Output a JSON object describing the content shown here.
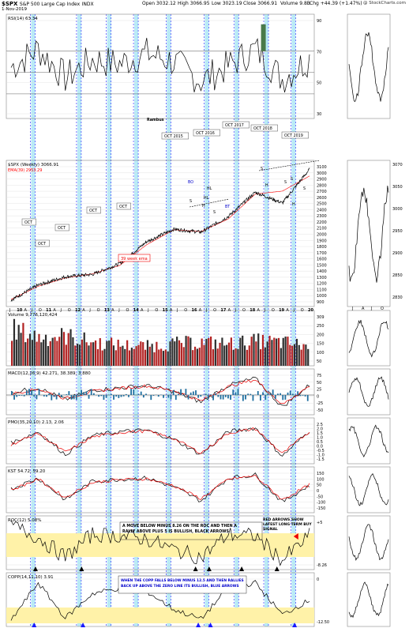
{
  "header": {
    "symbol": "$SPX",
    "name": "S&P 500 Large Cap Index",
    "exchange": "INDX",
    "date": "1-Nov-2019",
    "open": "Open 3032.12",
    "high": "High 3066.95",
    "low": "Low 3023.19",
    "close": "Close 3066.91",
    "volume": "Volume 9.8B",
    "chg": "Chg +44.39 (+1.47%)",
    "site": "@ StockCharts.com"
  },
  "colors": {
    "price": "#000000",
    "ema": "#ff0000",
    "volUp": "#b22222",
    "volDown": "#2e2e2e",
    "vline": "#1a1aff",
    "cyanband": "#7fd8ee",
    "yellow": "#fff2a8",
    "bars": "#1f6fa0"
  },
  "chart_data": [
    {
      "type": "line",
      "panel": "RSI",
      "title": "RSI(14) 63.34",
      "y_ticks": [
        "90",
        "70",
        "50",
        "30"
      ],
      "ylim": [
        10,
        100
      ],
      "x": [
        "2009",
        "2010",
        "2011",
        "2012",
        "2013",
        "2014",
        "2015",
        "2016",
        "2017",
        "2018",
        "2019",
        "2020"
      ],
      "series": [
        {
          "name": "RSI(14)",
          "values": [
            55,
            72,
            45,
            62,
            58,
            68,
            60,
            42,
            56,
            72,
            44,
            63
          ]
        }
      ]
    },
    {
      "type": "line",
      "panel": "Price",
      "title": "$SPX (Weekly) 3066.91",
      "legend": [
        "$SPX (Weekly) 3066.91",
        "EMA(39) 2953.29"
      ],
      "y_ticks": [
        "3100",
        "3000",
        "2900",
        "2800",
        "2700",
        "2600",
        "2500",
        "2400",
        "2300",
        "2200",
        "2100",
        "2000",
        "1900",
        "1800",
        "1700",
        "1600",
        "1500",
        "1400",
        "1300",
        "1200",
        "1100",
        "1000",
        "900"
      ],
      "ylim": [
        800,
        3150
      ],
      "x_ticks": [
        "J",
        "10",
        "A",
        "J",
        "O",
        "11",
        "A",
        "J",
        "O",
        "12",
        "A",
        "J",
        "O",
        "13",
        "A",
        "J",
        "O",
        "14",
        "A",
        "J",
        "O",
        "15",
        "A",
        "J",
        "O",
        "16",
        "A",
        "J",
        "O",
        "17",
        "A",
        "J",
        "O",
        "18",
        "A",
        "J",
        "O",
        "19",
        "A",
        "J",
        "O",
        "20"
      ],
      "x": [
        "2009",
        "2010",
        "2011",
        "2012",
        "2013",
        "2014",
        "2015",
        "2016",
        "2017",
        "2018",
        "2019",
        "2020"
      ],
      "series": [
        {
          "name": "$SPX (Weekly) 3066.91",
          "values": [
            870,
            1120,
            1260,
            1300,
            1480,
            1850,
            2060,
            2010,
            2270,
            2680,
            2500,
            3066
          ]
        },
        {
          "name": "EMA(39) 2953.29",
          "values": [
            880,
            1100,
            1240,
            1310,
            1450,
            1800,
            2050,
            2020,
            2230,
            2650,
            2700,
            2953
          ]
        }
      ],
      "annotations": [
        "OCT",
        "OCT",
        "OCT",
        "OCT",
        "OCT",
        "OCT 2015",
        "OCT 2016",
        "OCT 2017",
        "OCT 2018",
        "OCT 2019",
        "Rambus",
        "39 week ema",
        "HL",
        "BO",
        "BT",
        "HL",
        "S",
        "H",
        "S",
        "S",
        "H",
        "S",
        "S",
        "H",
        "S"
      ]
    },
    {
      "type": "bar",
      "panel": "Volume",
      "title": "Volume 9,776,120,424",
      "y_ticks": [
        "309",
        "250",
        "200",
        "150",
        "100",
        "50"
      ],
      "ylim": [
        0,
        330
      ],
      "x": [
        "2009",
        "2010",
        "2011",
        "2012",
        "2013",
        "2014",
        "2015",
        "2016",
        "2017",
        "2018",
        "2019",
        "2020"
      ],
      "values": [
        280,
        220,
        230,
        180,
        160,
        150,
        170,
        180,
        170,
        190,
        180,
        150
      ]
    },
    {
      "type": "line",
      "panel": "MACD",
      "title": "MACD(12,26,9) 42.271, 38.389, 3.880",
      "y_ticks": [
        "75",
        "50",
        "25",
        "0",
        "-25",
        "-50"
      ],
      "ylim": [
        -70,
        90
      ],
      "x": [
        "2009",
        "2010",
        "2011",
        "2012",
        "2013",
        "2014",
        "2015",
        "2016",
        "2017",
        "2018",
        "2019",
        "2020"
      ],
      "series": [
        {
          "name": "MACD",
          "values": [
            10,
            30,
            -20,
            20,
            30,
            40,
            15,
            -30,
            40,
            70,
            -50,
            42
          ]
        },
        {
          "name": "Signal",
          "values": [
            5,
            25,
            -15,
            15,
            28,
            38,
            18,
            -25,
            35,
            65,
            -40,
            38
          ]
        }
      ]
    },
    {
      "type": "line",
      "panel": "PMO",
      "title": "PMO(35,20,10) 2.13, 2.06",
      "y_ticks": [
        "2.5",
        "2.0",
        "1.5",
        "1.0",
        "0.5",
        "0.0",
        "-0.5",
        "-1.0",
        "-1.5"
      ],
      "ylim": [
        -1.8,
        3.2
      ],
      "x": [
        "2009",
        "2010",
        "2011",
        "2012",
        "2013",
        "2014",
        "2015",
        "2016",
        "2017",
        "2018",
        "2019",
        "2020"
      ],
      "series": [
        {
          "name": "PMO",
          "values": [
            0.5,
            2,
            -1,
            1.5,
            2,
            2.2,
            1,
            -1,
            2,
            2.5,
            -1.2,
            2.13
          ]
        },
        {
          "name": "Signal",
          "values": [
            0.3,
            1.8,
            -0.7,
            1.3,
            1.9,
            2.1,
            1.1,
            -0.8,
            1.8,
            2.4,
            -0.9,
            2.06
          ]
        }
      ]
    },
    {
      "type": "line",
      "panel": "KST",
      "title": "KST 54.72, 59.20",
      "y_ticks": [
        "150",
        "100",
        "50",
        "0",
        "-50",
        "-100",
        "-150"
      ],
      "ylim": [
        -170,
        180
      ],
      "x": [
        "2009",
        "2010",
        "2011",
        "2012",
        "2013",
        "2014",
        "2015",
        "2016",
        "2017",
        "2018",
        "2019",
        "2020"
      ],
      "series": [
        {
          "name": "KST",
          "values": [
            20,
            120,
            -80,
            90,
            110,
            120,
            40,
            -90,
            120,
            150,
            -100,
            54.72
          ]
        },
        {
          "name": "Signal",
          "values": [
            10,
            110,
            -60,
            80,
            105,
            115,
            50,
            -70,
            110,
            140,
            -80,
            59.2
          ]
        }
      ]
    },
    {
      "type": "line",
      "panel": "ROC",
      "title": "ROC(12) 5.08%",
      "y_ticks": [
        "+5",
        "-8.26"
      ],
      "x": [
        "2009",
        "2010",
        "2011",
        "2012",
        "2013",
        "2014",
        "2015",
        "2016",
        "2017",
        "2018",
        "2019",
        "2020"
      ],
      "series": [
        {
          "name": "ROC(12)",
          "values": [
            12,
            4,
            -9,
            6,
            5,
            3,
            -4,
            -9,
            6,
            5,
            -11,
            5.08
          ]
        }
      ],
      "annotations": [
        "A MOVE BELOW MINUS 8.26 ON THE ROC AND THEN A RALLY ABOVE PLUS 5 IS BULLISH, BLACK ARROWS",
        "RED ARROWS SHOW LATEST LONG TERM BUY SIGNAL"
      ]
    },
    {
      "type": "line",
      "panel": "COPP",
      "title": "COPP(14,11,10) 3.91",
      "y_ticks": [
        "0",
        "-12.50"
      ],
      "x": [
        "2009",
        "2010",
        "2011",
        "2012",
        "2013",
        "2014",
        "2015",
        "2016",
        "2017",
        "2018",
        "2019",
        "2020"
      ],
      "series": [
        {
          "name": "COPP",
          "values": [
            -15,
            20,
            -13,
            10,
            15,
            12,
            -5,
            -14,
            15,
            20,
            -10,
            3.91
          ]
        }
      ],
      "annotations": [
        "WHEN THE COPP FALLS BELOW MINUS 12.5 AND THEN RALLIES BACK UP ABOVE THE ZERO LINE ITS BULLISH, BLUE ARROWS"
      ]
    },
    {
      "type": "bar",
      "panel": "Side",
      "title": "",
      "x_ticks": [
        "J",
        "A",
        "J",
        "O"
      ],
      "y_ticks": [
        "3070",
        "3050",
        "3000",
        "2950",
        "2900",
        "2850",
        "2830"
      ],
      "values": [
        2950,
        2980,
        3020,
        3066
      ]
    }
  ]
}
